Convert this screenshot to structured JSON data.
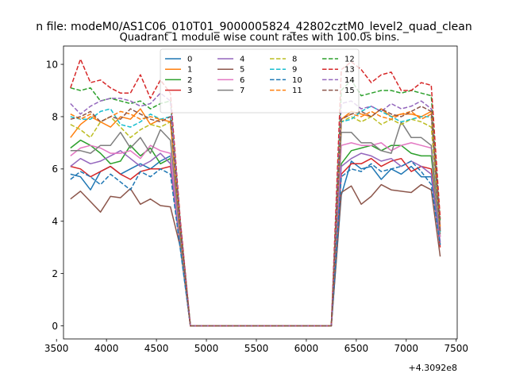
{
  "figure": {
    "suptitle": "n file: modeM0/AS1C06_010T01_9000005824_42802cztM0_level2_quad_clean",
    "title": "Quadrant 1 module wise count rates with 100.0s bins.",
    "offset_label": "+4.3092e8"
  },
  "chart_data": {
    "type": "line",
    "title": "Quadrant 1 module wise count rates with 100.0s bins.",
    "xlabel": "",
    "ylabel": "",
    "x_offset": 430920000,
    "xlim": [
      3570,
      7510
    ],
    "ylim": [
      -0.5,
      10.7
    ],
    "xticks": [
      3500,
      4000,
      4500,
      5000,
      5500,
      6000,
      6500,
      7000,
      7500
    ],
    "yticks": [
      0,
      2,
      4,
      6,
      8,
      10
    ],
    "grid": false,
    "legend": {
      "placement": "top-center",
      "columns": 4
    },
    "x": [
      3640,
      3740,
      3840,
      3940,
      4040,
      4140,
      4240,
      4340,
      4440,
      4540,
      4640,
      4740,
      4840,
      6250,
      6350,
      6450,
      6550,
      6650,
      6750,
      6850,
      6950,
      7050,
      7150,
      7250,
      7340
    ],
    "series": [
      {
        "name": "0",
        "color": "#1f77b4",
        "dash": "solid",
        "values": [
          5.8,
          5.7,
          5.2,
          5.9,
          6.1,
          5.8,
          6.0,
          6.2,
          6.0,
          6.3,
          6.5,
          3.1,
          0,
          0,
          5.0,
          6.3,
          6.0,
          6.1,
          5.6,
          6.0,
          5.8,
          6.1,
          5.7,
          5.7,
          3.1
        ]
      },
      {
        "name": "1",
        "color": "#ff7f0e",
        "dash": "solid",
        "values": [
          7.2,
          7.7,
          8.0,
          7.8,
          7.6,
          8.0,
          7.9,
          8.3,
          7.7,
          7.9,
          7.8,
          3.5,
          0,
          0,
          7.9,
          8.2,
          8.1,
          8.0,
          8.3,
          8.0,
          8.1,
          8.1,
          8.0,
          8.2,
          3.8
        ]
      },
      {
        "name": "2",
        "color": "#2ca02c",
        "dash": "solid",
        "values": [
          6.8,
          7.1,
          6.9,
          6.6,
          6.2,
          6.3,
          6.9,
          6.5,
          6.8,
          6.2,
          6.4,
          3.2,
          0,
          0,
          6.2,
          6.7,
          6.8,
          6.9,
          6.7,
          6.9,
          6.9,
          6.6,
          6.5,
          6.5,
          3.4
        ]
      },
      {
        "name": "3",
        "color": "#d62728",
        "dash": "solid",
        "values": [
          6.1,
          6.0,
          5.7,
          5.9,
          6.1,
          5.8,
          5.6,
          5.9,
          6.0,
          6.0,
          6.1,
          3.0,
          0,
          0,
          5.8,
          6.2,
          6.2,
          6.4,
          6.1,
          6.3,
          6.4,
          5.9,
          6.1,
          6.0,
          3.0
        ]
      },
      {
        "name": "4",
        "color": "#9467bd",
        "dash": "solid",
        "values": [
          6.1,
          6.4,
          6.2,
          6.3,
          6.5,
          6.7,
          6.4,
          6.1,
          6.3,
          6.6,
          6.2,
          3.1,
          0,
          0,
          6.1,
          6.4,
          6.6,
          6.5,
          6.3,
          6.4,
          6.1,
          6.3,
          6.1,
          5.8,
          3.2
        ]
      },
      {
        "name": "5",
        "color": "#8c564b",
        "dash": "solid",
        "values": [
          4.85,
          5.15,
          4.75,
          4.35,
          4.95,
          4.9,
          5.25,
          4.65,
          4.85,
          4.6,
          4.55,
          3.0,
          0,
          0,
          5.1,
          5.35,
          4.65,
          4.95,
          5.4,
          5.2,
          5.15,
          5.1,
          5.4,
          5.2,
          2.65
        ]
      },
      {
        "name": "6",
        "color": "#e377c2",
        "dash": "solid",
        "values": [
          6.5,
          6.8,
          6.9,
          6.8,
          6.6,
          6.6,
          6.7,
          6.4,
          6.9,
          6.7,
          6.6,
          3.2,
          0,
          0,
          6.9,
          7.0,
          6.9,
          6.9,
          7.0,
          6.7,
          6.9,
          7.0,
          6.9,
          6.8,
          3.4
        ]
      },
      {
        "name": "7",
        "color": "#7f7f7f",
        "dash": "solid",
        "values": [
          6.7,
          6.7,
          6.6,
          6.9,
          6.9,
          7.4,
          6.8,
          7.2,
          6.6,
          7.5,
          7.1,
          3.3,
          0,
          0,
          7.4,
          7.4,
          7.0,
          7.0,
          6.7,
          6.6,
          7.8,
          7.2,
          7.2,
          6.9,
          3.5
        ]
      },
      {
        "name": "8",
        "color": "#bcbd22",
        "dash": "dashed",
        "values": [
          7.7,
          7.5,
          7.2,
          7.8,
          8.0,
          7.6,
          7.2,
          7.5,
          7.7,
          7.6,
          7.8,
          3.5,
          0,
          0,
          7.8,
          8.0,
          7.8,
          8.0,
          7.7,
          7.9,
          7.7,
          7.9,
          7.8,
          7.6,
          3.6
        ]
      },
      {
        "name": "9",
        "color": "#17becf",
        "dash": "dashed",
        "values": [
          8.0,
          7.9,
          7.9,
          8.2,
          8.3,
          7.7,
          7.6,
          7.8,
          8.1,
          7.9,
          8.0,
          3.6,
          0,
          0,
          7.8,
          7.9,
          8.2,
          8.4,
          8.2,
          8.0,
          7.8,
          7.9,
          8.0,
          8.0,
          3.6
        ]
      },
      {
        "name": "10",
        "color": "#1f77b4",
        "dash": "dashed",
        "values": [
          5.6,
          5.9,
          5.7,
          5.4,
          5.8,
          5.5,
          5.2,
          5.9,
          5.7,
          6.0,
          5.8,
          2.9,
          0,
          0,
          5.7,
          6.0,
          5.9,
          6.2,
          5.9,
          6.0,
          6.1,
          6.3,
          5.9,
          5.4,
          3.1
        ]
      },
      {
        "name": "11",
        "color": "#ff7f0e",
        "dash": "dashed",
        "values": [
          8.1,
          7.9,
          8.1,
          7.8,
          8.0,
          8.2,
          8.1,
          7.9,
          8.0,
          7.9,
          7.8,
          3.6,
          0,
          0,
          7.9,
          8.1,
          8.0,
          8.2,
          8.0,
          7.9,
          8.1,
          8.2,
          7.9,
          8.1,
          3.7
        ]
      },
      {
        "name": "12",
        "color": "#2ca02c",
        "dash": "dashed",
        "values": [
          9.1,
          9.0,
          9.1,
          8.6,
          8.7,
          8.6,
          8.5,
          8.6,
          8.3,
          8.5,
          8.6,
          3.9,
          0,
          0,
          9.0,
          9.4,
          8.8,
          8.9,
          9.0,
          9.0,
          8.9,
          9.0,
          8.9,
          8.8,
          4.0
        ]
      },
      {
        "name": "13",
        "color": "#d62728",
        "dash": "dashed",
        "values": [
          9.1,
          10.2,
          9.3,
          9.4,
          9.1,
          8.9,
          8.9,
          9.6,
          8.7,
          9.4,
          8.9,
          4.0,
          0,
          0,
          9.8,
          10.1,
          9.8,
          9.3,
          9.6,
          9.7,
          9.0,
          9.0,
          9.3,
          9.2,
          4.1
        ]
      },
      {
        "name": "14",
        "color": "#9467bd",
        "dash": "dashed",
        "values": [
          8.5,
          8.1,
          8.4,
          8.6,
          8.7,
          8.7,
          8.6,
          8.4,
          8.5,
          8.9,
          8.6,
          3.8,
          0,
          0,
          8.5,
          8.6,
          8.3,
          8.4,
          8.2,
          8.5,
          8.3,
          8.4,
          8.6,
          8.3,
          3.7
        ]
      },
      {
        "name": "15",
        "color": "#8c564b",
        "dash": "dashed",
        "values": [
          7.9,
          8.0,
          8.2,
          7.8,
          8.0,
          7.9,
          8.3,
          8.1,
          7.9,
          7.8,
          8.0,
          3.6,
          0,
          0,
          7.9,
          8.1,
          8.2,
          8.0,
          8.3,
          8.1,
          8.0,
          8.2,
          8.4,
          8.2,
          3.6
        ]
      }
    ]
  }
}
